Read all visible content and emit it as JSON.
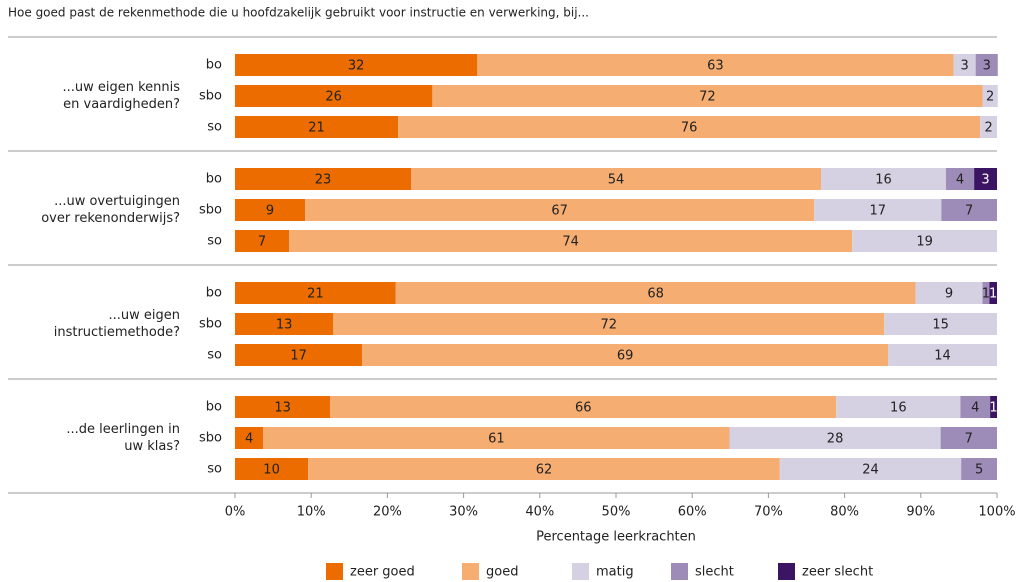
{
  "chart_data": {
    "type": "bar",
    "orientation": "horizontal",
    "stacked": true,
    "title": "Hoe goed past de rekenmethode die u hoofdzakelijk gebruikt voor instructie en verwerking, bij...",
    "xlabel": "Percentage leerkrachten",
    "groups": [
      [
        "...uw eigen kennis",
        "en vaardigheden?"
      ],
      [
        "...uw overtuigingen",
        "over rekenonderwijs?"
      ],
      [
        "...uw eigen",
        "instructiemethode?"
      ],
      [
        "...de leerlingen in",
        "uw klas?"
      ]
    ],
    "categories": [
      "bo",
      "sbo",
      "so",
      "bo",
      "sbo",
      "so",
      "bo",
      "sbo",
      "so",
      "bo",
      "sbo",
      "so"
    ],
    "series": [
      {
        "name": "zeer goed",
        "color": "#ec6c00",
        "values": [
          31.8,
          25.9,
          21.4,
          23.1,
          9.2,
          7.1,
          21.1,
          12.9,
          16.7,
          12.5,
          3.7,
          9.6
        ],
        "value_labels": [
          "32",
          "26",
          "21",
          "23",
          "9",
          "7",
          "21",
          "13",
          "17",
          "13",
          "4",
          "10"
        ]
      },
      {
        "name": "goed",
        "color": "#f5ad72",
        "values": [
          62.5,
          72.2,
          76.4,
          53.8,
          66.8,
          73.9,
          68.2,
          72.3,
          69.0,
          66.4,
          61.2,
          61.9
        ],
        "value_labels": [
          "63",
          "72",
          "76",
          "54",
          "67",
          "74",
          "68",
          "72",
          "69",
          "66",
          "61",
          "62"
        ]
      },
      {
        "name": "matig",
        "color": "#d5d1e3",
        "values": [
          2.9,
          2.0,
          2.2,
          16.4,
          16.7,
          19.0,
          8.8,
          14.8,
          14.3,
          16.3,
          27.7,
          23.8
        ],
        "value_labels": [
          "3",
          "2",
          "2",
          "16",
          "17",
          "19",
          "9",
          "15",
          "14",
          "16",
          "28",
          "24"
        ]
      },
      {
        "name": "slecht",
        "color": "#9e8cb8",
        "values": [
          2.9,
          null,
          null,
          3.7,
          7.3,
          null,
          0.9,
          null,
          null,
          3.9,
          7.4,
          4.7
        ],
        "value_labels": [
          "3",
          null,
          null,
          "4",
          "7",
          null,
          "1",
          null,
          null,
          "4",
          "7",
          "5"
        ]
      },
      {
        "name": "zeer slecht",
        "color": "#3b1463",
        "values": [
          null,
          null,
          null,
          3.0,
          null,
          null,
          1.0,
          null,
          null,
          0.9,
          null,
          null
        ],
        "value_labels": [
          null,
          null,
          null,
          "3",
          null,
          null,
          "1",
          null,
          null,
          "1",
          null,
          null
        ]
      }
    ],
    "xlim": [
      0,
      100
    ],
    "xticks": [
      {
        "value": 0,
        "label": "0%"
      },
      {
        "value": 10,
        "label": "10%"
      },
      {
        "value": 20,
        "label": "20%"
      },
      {
        "value": 30,
        "label": "30%"
      },
      {
        "value": 40,
        "label": "40%"
      },
      {
        "value": 50,
        "label": "50%"
      },
      {
        "value": 60,
        "label": "60%"
      },
      {
        "value": 70,
        "label": "70%"
      },
      {
        "value": 80,
        "label": "80%"
      },
      {
        "value": 90,
        "label": "90%"
      },
      {
        "value": 100,
        "label": "100%"
      }
    ],
    "legend": "bottom"
  }
}
